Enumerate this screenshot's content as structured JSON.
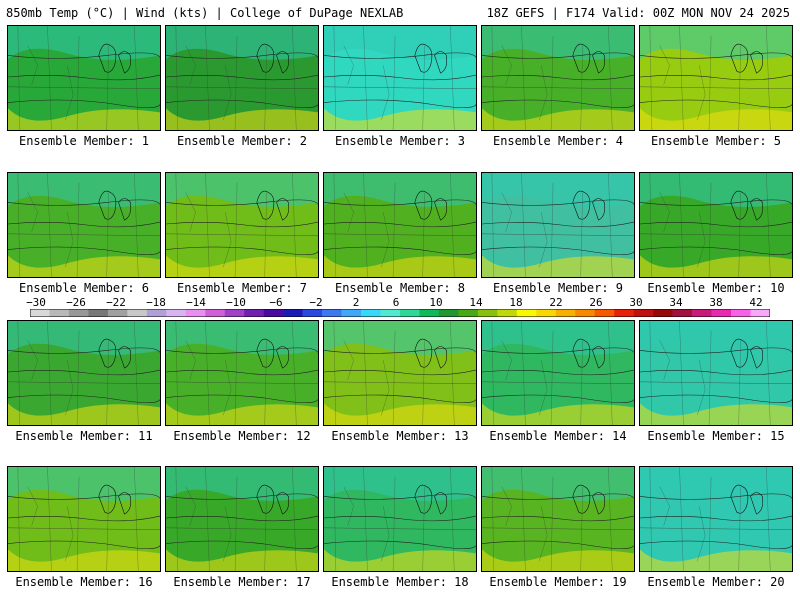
{
  "header": {
    "left": "850mb Temp (°C) | Wind (kts) | College of DuPage NEXLAB",
    "right": "18Z GEFS | F174 Valid: 00Z MON NOV 24 2025"
  },
  "colorbar": {
    "ticks": [
      "−30",
      "−26",
      "−22",
      "−18",
      "−14",
      "−10",
      "−6",
      "−2",
      "2",
      "6",
      "10",
      "14",
      "18",
      "22",
      "26",
      "30",
      "34",
      "38",
      "42"
    ],
    "colors": [
      "#d8d8d8",
      "#b8b8b8",
      "#989898",
      "#787878",
      "#a0a0a0",
      "#c8c8c8",
      "#b0a0d8",
      "#d8b4f0",
      "#e890f0",
      "#d060d8",
      "#a040c8",
      "#7020b0",
      "#4a0aa0",
      "#1a1ab4",
      "#2a48e0",
      "#3c78f0",
      "#40a8f8",
      "#38d8f8",
      "#50e8d0",
      "#30d898",
      "#10b858",
      "#209830",
      "#48a818",
      "#88c010",
      "#c0d808",
      "#f8f800",
      "#f8d800",
      "#f8b000",
      "#f88800",
      "#f85800",
      "#e82008",
      "#c01010",
      "#980808",
      "#a01040",
      "#c81878",
      "#e828b0",
      "#f860e8",
      "#f8a8f8"
    ]
  },
  "members": [
    {
      "label": "Ensemble Member: 1",
      "theme": "#28a838"
    },
    {
      "label": "Ensemble Member: 2",
      "theme": "#2a9a30"
    },
    {
      "label": "Ensemble Member: 3",
      "theme": "#30d8c0"
    },
    {
      "label": "Ensemble Member: 4",
      "theme": "#48b028"
    },
    {
      "label": "Ensemble Member: 5",
      "theme": "#98cc10"
    },
    {
      "label": "Ensemble Member: 6",
      "theme": "#48b028"
    },
    {
      "label": "Ensemble Member: 7",
      "theme": "#70bc18"
    },
    {
      "label": "Ensemble Member: 8",
      "theme": "#50b020"
    },
    {
      "label": "Ensemble Member: 9",
      "theme": "#40c0a0"
    },
    {
      "label": "Ensemble Member: 10",
      "theme": "#38a828"
    },
    {
      "label": "Ensemble Member: 11",
      "theme": "#3aa830"
    },
    {
      "label": "Ensemble Member: 12",
      "theme": "#48b028"
    },
    {
      "label": "Ensemble Member: 13",
      "theme": "#80c018"
    },
    {
      "label": "Ensemble Member: 14",
      "theme": "#30b860"
    },
    {
      "label": "Ensemble Member: 15",
      "theme": "#30c8a8"
    },
    {
      "label": "Ensemble Member: 16",
      "theme": "#70bc18"
    },
    {
      "label": "Ensemble Member: 17",
      "theme": "#38a828"
    },
    {
      "label": "Ensemble Member: 18",
      "theme": "#30b860"
    },
    {
      "label": "Ensemble Member: 19",
      "theme": "#58b420"
    },
    {
      "label": "Ensemble Member: 20",
      "theme": "#30c8b0"
    }
  ]
}
